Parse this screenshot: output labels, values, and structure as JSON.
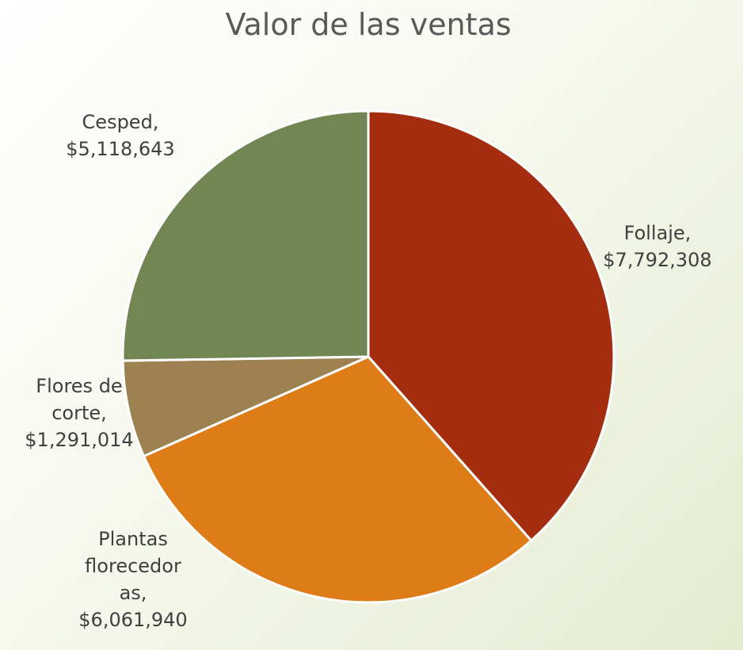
{
  "chart_data": {
    "type": "pie",
    "title": "Valor de las ventas",
    "values": [
      7792308,
      6061940,
      1291014,
      5118643
    ],
    "value_labels": [
      "Follaje, $7,792,308",
      "Plantas florecedoras, $6,061,940",
      "Flores de corte, $1,291,014",
      "Cesped, $5,118,643"
    ],
    "colors": [
      "#a52d0f",
      "#de7c18",
      "#9e8150",
      "#728653"
    ]
  }
}
